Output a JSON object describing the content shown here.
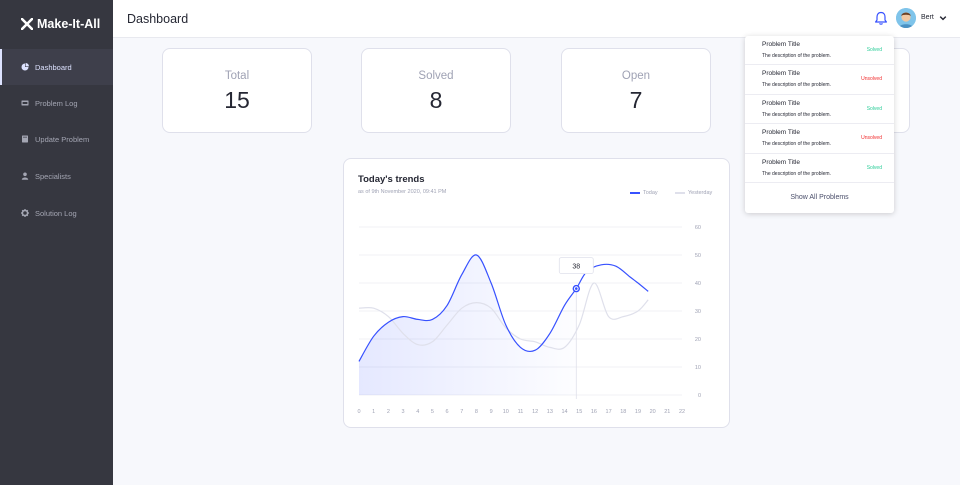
{
  "app": {
    "name": "Make-It-All"
  },
  "sidebar": {
    "items": [
      {
        "label": "Dashboard",
        "icon": "pie-chart-icon",
        "active": true
      },
      {
        "label": "Problem Log",
        "icon": "ticket-icon",
        "active": false
      },
      {
        "label": "Update Problem",
        "icon": "book-icon",
        "active": false
      },
      {
        "label": "Specialists",
        "icon": "user-icon",
        "active": false
      },
      {
        "label": "Solution Log",
        "icon": "gear-icon",
        "active": false
      }
    ]
  },
  "header": {
    "title": "Dashboard",
    "user": {
      "name": "Bert"
    }
  },
  "cards": [
    {
      "label": "Total",
      "value": "15"
    },
    {
      "label": "Solved",
      "value": "8"
    },
    {
      "label": "Open",
      "value": "7"
    }
  ],
  "trends": {
    "title": "Today's trends",
    "subtitle": "as of 9th November 2020, 09:41 PM"
  },
  "chart_data": {
    "type": "line",
    "title": "Today's trends",
    "subtitle": "as of 9th November 2020, 09:41 PM",
    "x": [
      0,
      1,
      2,
      3,
      4,
      5,
      6,
      7,
      8,
      9,
      10,
      11,
      12,
      13,
      14,
      15,
      16,
      17,
      18,
      19,
      20,
      21,
      22
    ],
    "xlim": [
      0,
      22
    ],
    "ylim": [
      0,
      60
    ],
    "yticks": [
      0,
      10,
      20,
      30,
      40,
      50,
      60
    ],
    "grid": true,
    "legend": "top-right",
    "tooltip": {
      "x": 14.8,
      "value": "38"
    },
    "series": [
      {
        "name": "Today",
        "color": "#3751ff",
        "points": [
          [
            0,
            12
          ],
          [
            1,
            21
          ],
          [
            2,
            26
          ],
          [
            3,
            28
          ],
          [
            4,
            27
          ],
          [
            5,
            27
          ],
          [
            6,
            32
          ],
          [
            7,
            43
          ],
          [
            8,
            50
          ],
          [
            9,
            40
          ],
          [
            10,
            25
          ],
          [
            11,
            17
          ],
          [
            12,
            16
          ],
          [
            13,
            22
          ],
          [
            14,
            32
          ],
          [
            14.8,
            38
          ],
          [
            15.5,
            44
          ],
          [
            16.5,
            46.5
          ],
          [
            17.5,
            46
          ],
          [
            18.5,
            42
          ],
          [
            19,
            40
          ],
          [
            19.7,
            37
          ]
        ]
      },
      {
        "name": "Yesterday",
        "color": "#dfe0eb",
        "points": [
          [
            0,
            31
          ],
          [
            1,
            31
          ],
          [
            2,
            28
          ],
          [
            3,
            22
          ],
          [
            4,
            18
          ],
          [
            5,
            19
          ],
          [
            6,
            25
          ],
          [
            7,
            31
          ],
          [
            8,
            33
          ],
          [
            9,
            31
          ],
          [
            10,
            24
          ],
          [
            11,
            20
          ],
          [
            12,
            19
          ],
          [
            13,
            17
          ],
          [
            14,
            17
          ],
          [
            15,
            25
          ],
          [
            16,
            40
          ],
          [
            17,
            28
          ],
          [
            18,
            28
          ],
          [
            19,
            30
          ],
          [
            19.7,
            34
          ]
        ]
      }
    ]
  },
  "notifications": {
    "items": [
      {
        "title": "Problem Title",
        "description": "The description of the problem.",
        "status": "Solved"
      },
      {
        "title": "Problem Title",
        "description": "The description of the problem.",
        "status": "Unsolved"
      },
      {
        "title": "Problem Title",
        "description": "The description of the problem.",
        "status": "Solved"
      },
      {
        "title": "Problem Title",
        "description": "The description of the problem.",
        "status": "Unsolved"
      },
      {
        "title": "Problem Title",
        "description": "The description of the problem.",
        "status": "Solved"
      }
    ],
    "footer": "Show All Problems"
  },
  "colors": {
    "solved": "#29cc97",
    "unsolved": "#f12b2c",
    "accent": "#3751ff",
    "sidebar": "#363740"
  }
}
